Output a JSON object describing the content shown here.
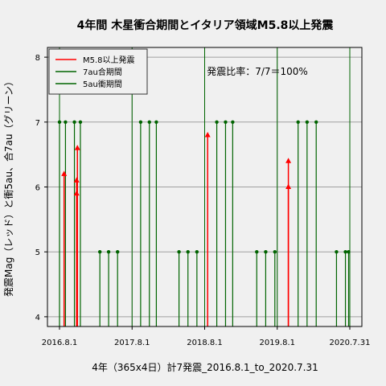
{
  "chart_data": {
    "type": "line",
    "title": "4年間 木星衝合期間とイタリア領域M5.8以上発震",
    "xlabel": "4年（365x4日）計7発震_2016.8.1_to_2020.7.31",
    "ylabel": "発震Mag（レッド）と衝5au、合7au（グリーン）",
    "annotation": "発震比率：7/7＝100%",
    "x_range": [
      "2016-08-01",
      "2020-07-31"
    ],
    "ylim": [
      3.85,
      8.15
    ],
    "x_ticks": [
      {
        "label": "2016.8.1",
        "date": "2016-08-01"
      },
      {
        "label": "2017.8.1",
        "date": "2017-08-01"
      },
      {
        "label": "2018.8.1",
        "date": "2018-08-01"
      },
      {
        "label": "2019.8.1",
        "date": "2019-08-01"
      },
      {
        "label": "2020.7.31",
        "date": "2020-07-31"
      }
    ],
    "y_ticks": [
      4,
      5,
      6,
      7,
      8
    ],
    "grid": true,
    "legend_position": "top-left",
    "series": [
      {
        "name": "M5.8以上発震",
        "color": "#ff0000",
        "style": "earthquake",
        "points": [
          {
            "date": "2016-08-24",
            "mag": 6.2
          },
          {
            "date": "2016-10-26",
            "mag": 5.9
          },
          {
            "date": "2016-10-26",
            "mag": 6.1
          },
          {
            "date": "2016-10-30",
            "mag": 6.6
          },
          {
            "date": "2018-08-16",
            "mag": 6.8
          },
          {
            "date": "2019-09-26",
            "mag": 6.0
          },
          {
            "date": "2019-09-26",
            "mag": 6.4
          }
        ]
      },
      {
        "name": "7au合期間",
        "color": "#006400",
        "style": "period",
        "level": 7,
        "points": [
          "2016-08-01",
          "2016-08-31",
          "2016-10-15",
          "2016-11-14",
          "2017-09-13",
          "2017-10-27",
          "2017-12-01",
          "2018-10-01",
          "2018-11-14",
          "2018-12-20",
          "2019-11-14",
          "2019-12-29",
          "2020-02-13"
        ]
      },
      {
        "name": "5au衝期間",
        "color": "#006400",
        "style": "period",
        "level": 5,
        "points": [
          "2017-02-20",
          "2017-04-05",
          "2017-05-20",
          "2018-03-25",
          "2018-05-09",
          "2018-06-23",
          "2019-04-20",
          "2019-06-04",
          "2019-07-20",
          "2020-05-25",
          "2020-07-09",
          "2020-07-25"
        ]
      }
    ],
    "vertical_markers": [
      "2016-08-01",
      "2017-08-01",
      "2018-08-01",
      "2019-08-01",
      "2020-07-31"
    ],
    "colors": {
      "earthquake": "#ff0000",
      "period": "#006400",
      "grid": "#a0a0a0"
    }
  }
}
